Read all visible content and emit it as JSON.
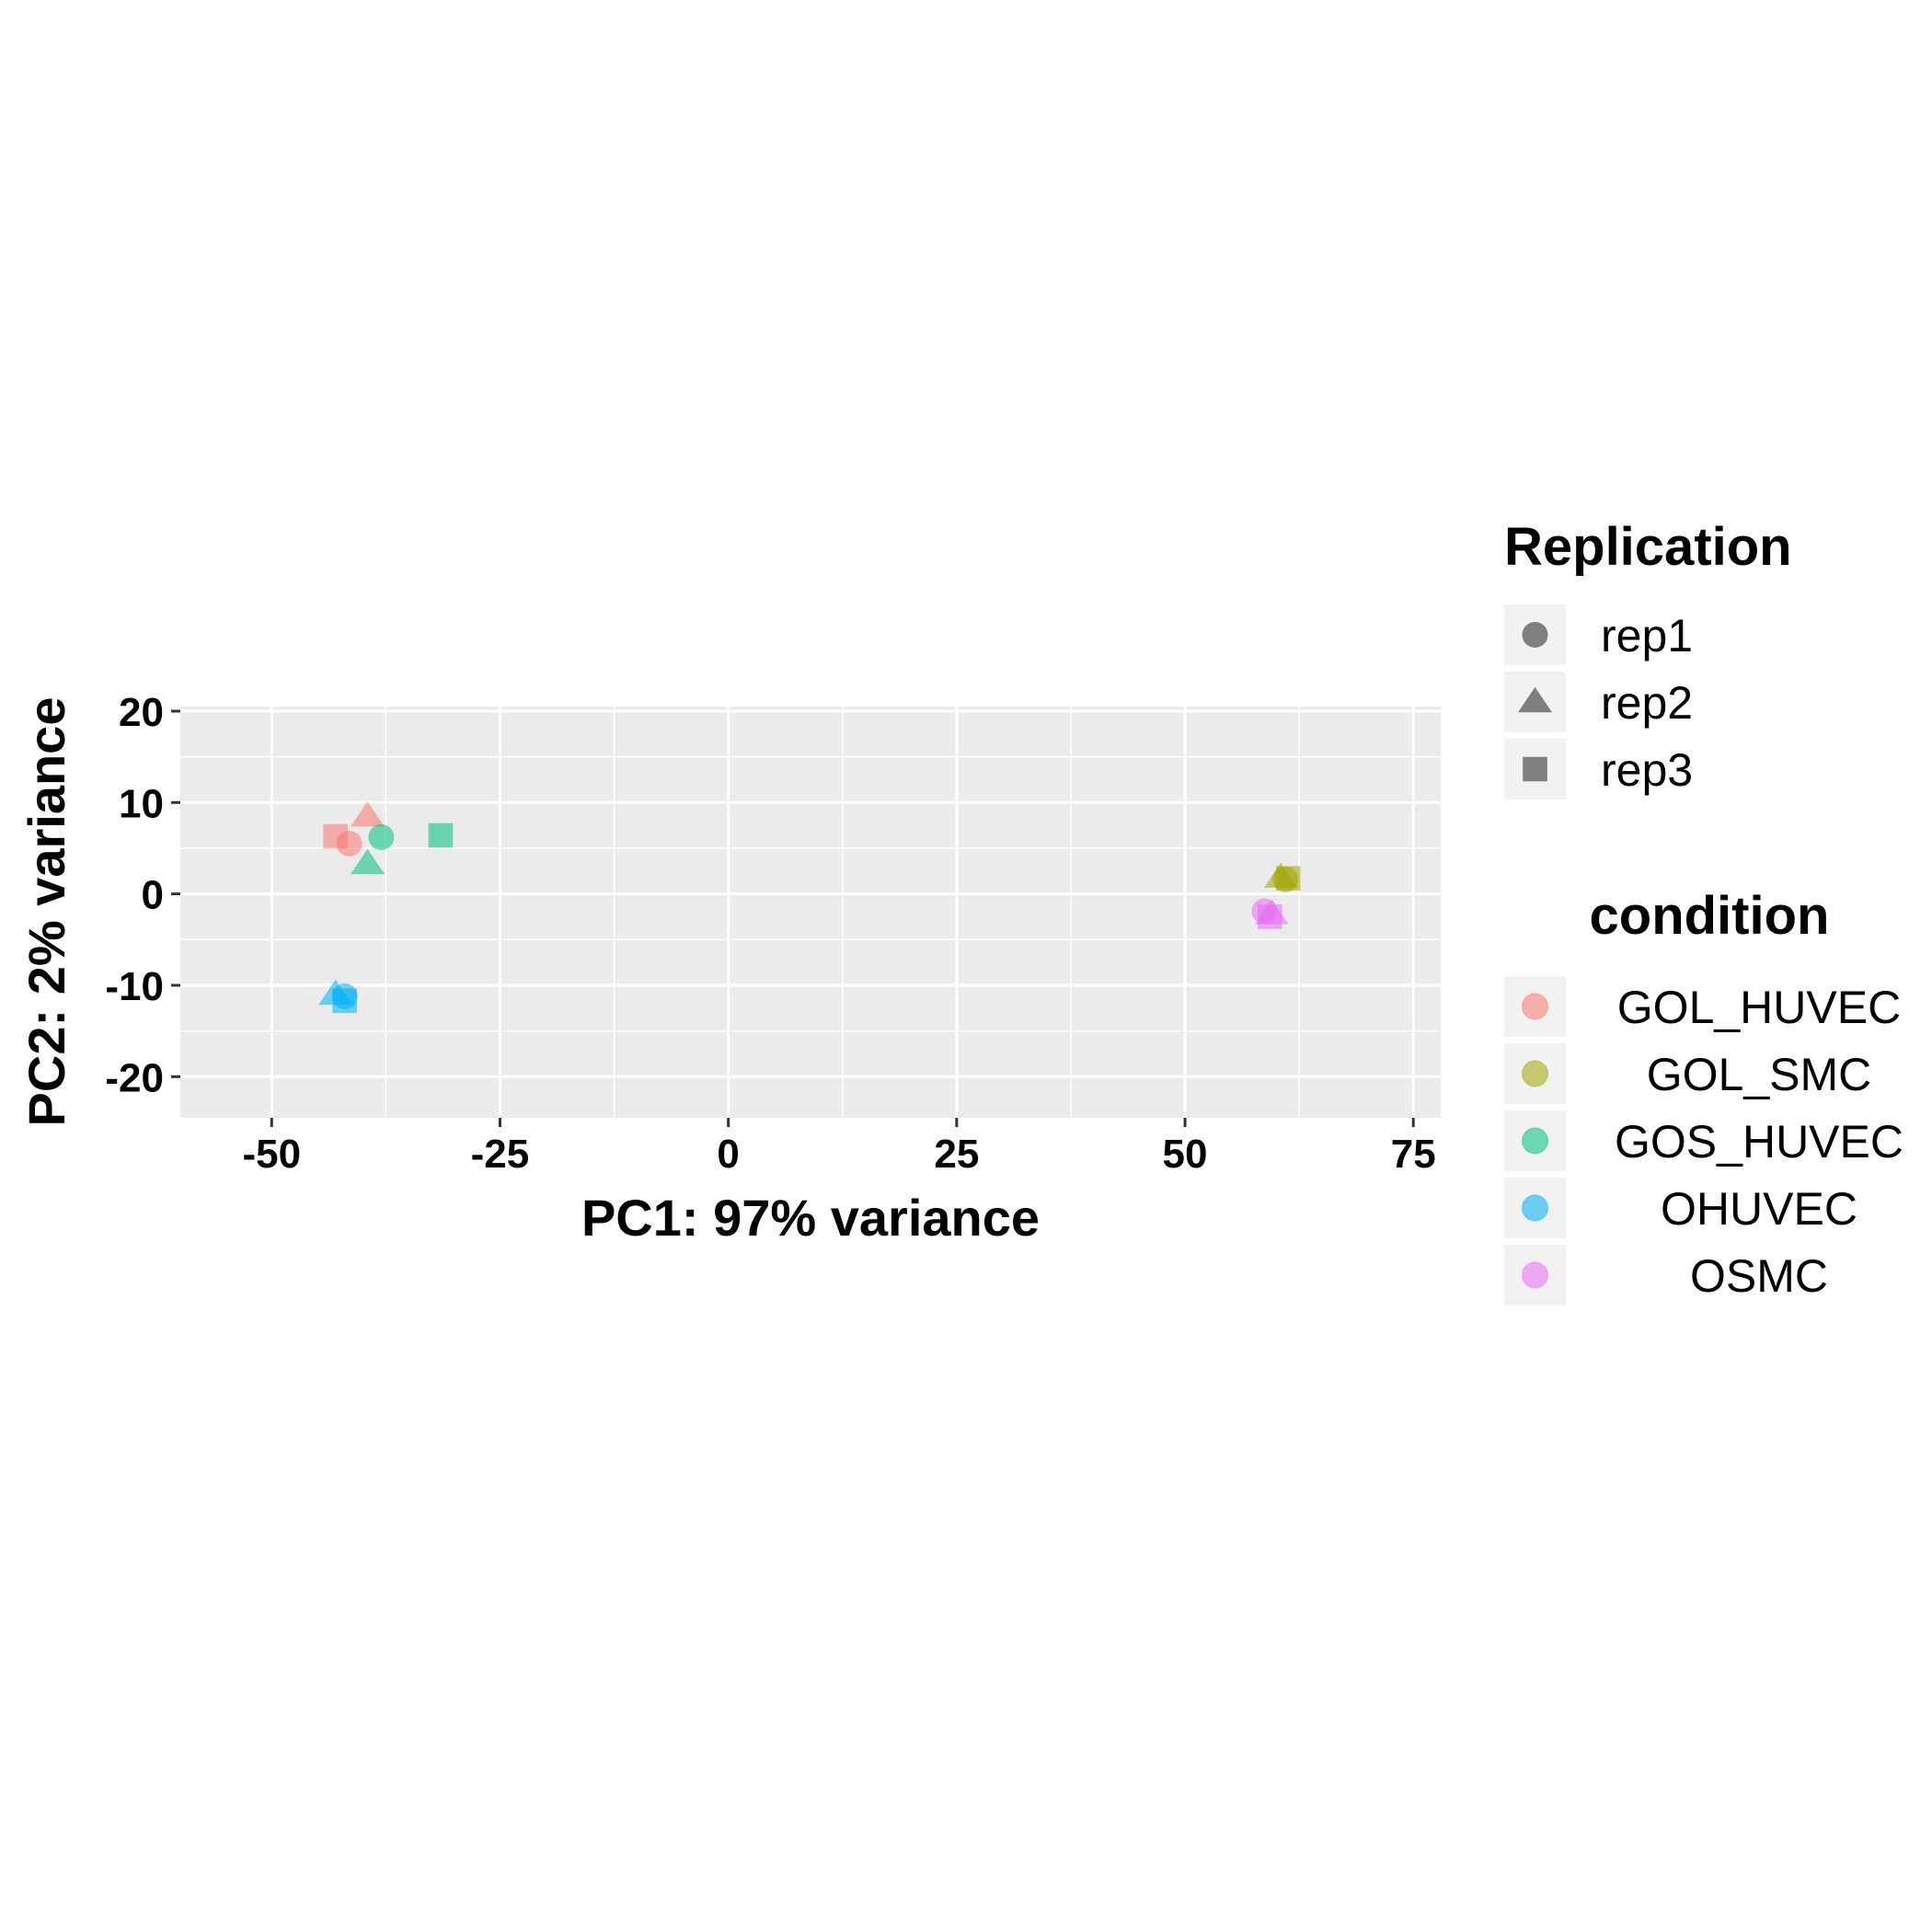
{
  "chart_data": {
    "type": "scatter",
    "xlabel": "PC1: 97% variance",
    "ylabel": "PC2: 2% variance",
    "xlim": [
      -60,
      78
    ],
    "ylim": [
      -24.5,
      20.5
    ],
    "x_ticks": [
      -50,
      -25,
      0,
      25,
      50,
      75
    ],
    "y_ticks": [
      20,
      10,
      0,
      -10,
      -20
    ],
    "grid": true,
    "legend_position": "right",
    "shape_legend": {
      "title": "Replication",
      "items": [
        {
          "label": "rep1",
          "shape": "circle"
        },
        {
          "label": "rep2",
          "shape": "triangle"
        },
        {
          "label": "rep3",
          "shape": "square"
        }
      ]
    },
    "color_legend": {
      "title": "condition",
      "items": [
        {
          "label": "GOL_HUVEC",
          "color": "#F8766D"
        },
        {
          "label": "GOL_SMC",
          "color": "#A3A500"
        },
        {
          "label": "GOS_HUVEC",
          "color": "#00BF7D"
        },
        {
          "label": "OHUVEC",
          "color": "#00B0F6"
        },
        {
          "label": "OSMC",
          "color": "#E76BF3"
        }
      ]
    },
    "points": [
      {
        "condition": "GOL_HUVEC",
        "replication": "rep1",
        "x": -41.5,
        "y": 5.5
      },
      {
        "condition": "GOL_HUVEC",
        "replication": "rep2",
        "x": -39.5,
        "y": 8.5
      },
      {
        "condition": "GOL_HUVEC",
        "replication": "rep3",
        "x": -43,
        "y": 6.3
      },
      {
        "condition": "GOS_HUVEC",
        "replication": "rep1",
        "x": -38,
        "y": 6.2
      },
      {
        "condition": "GOS_HUVEC",
        "replication": "rep2",
        "x": -39.5,
        "y": 3.3
      },
      {
        "condition": "GOS_HUVEC",
        "replication": "rep3",
        "x": -31.5,
        "y": 6.4
      },
      {
        "condition": "OHUVEC",
        "replication": "rep1",
        "x": -42,
        "y": -11.2
      },
      {
        "condition": "OHUVEC",
        "replication": "rep2",
        "x": -43,
        "y": -11
      },
      {
        "condition": "OHUVEC",
        "replication": "rep3",
        "x": -42,
        "y": -11.7
      },
      {
        "condition": "GOL_SMC",
        "replication": "rep1",
        "x": 61,
        "y": 1.6
      },
      {
        "condition": "GOL_SMC",
        "replication": "rep2",
        "x": 60.5,
        "y": 1.8
      },
      {
        "condition": "GOL_SMC",
        "replication": "rep3",
        "x": 61.3,
        "y": 1.7
      },
      {
        "condition": "OSMC",
        "replication": "rep1",
        "x": 58.7,
        "y": -1.9
      },
      {
        "condition": "OSMC",
        "replication": "rep2",
        "x": 59.5,
        "y": -2.2
      },
      {
        "condition": "OSMC",
        "replication": "rep3",
        "x": 59.3,
        "y": -2.5
      }
    ]
  }
}
